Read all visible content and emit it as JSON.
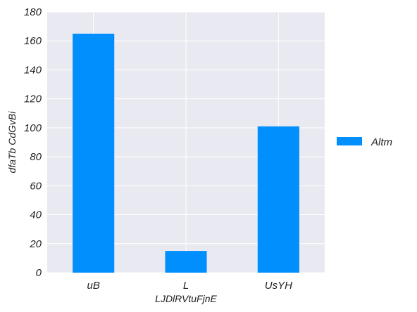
{
  "chart_data": {
    "type": "bar",
    "categories": [
      "uB",
      "L",
      "UsYH"
    ],
    "series": [
      {
        "name": "Altm",
        "values": [
          165,
          15,
          101
        ]
      }
    ],
    "xlabel": "LJDlRVtuFjnE",
    "ylabel": "dfaTb CdGvBi",
    "ylim": [
      0,
      180
    ],
    "yticks": [
      0,
      20,
      40,
      60,
      80,
      100,
      120,
      140,
      160,
      180
    ],
    "grid": true,
    "legend_position": "right",
    "colors": {
      "bar": "#028ffe",
      "plot_background": "#e9e9f1",
      "grid": "#ffffff"
    }
  }
}
